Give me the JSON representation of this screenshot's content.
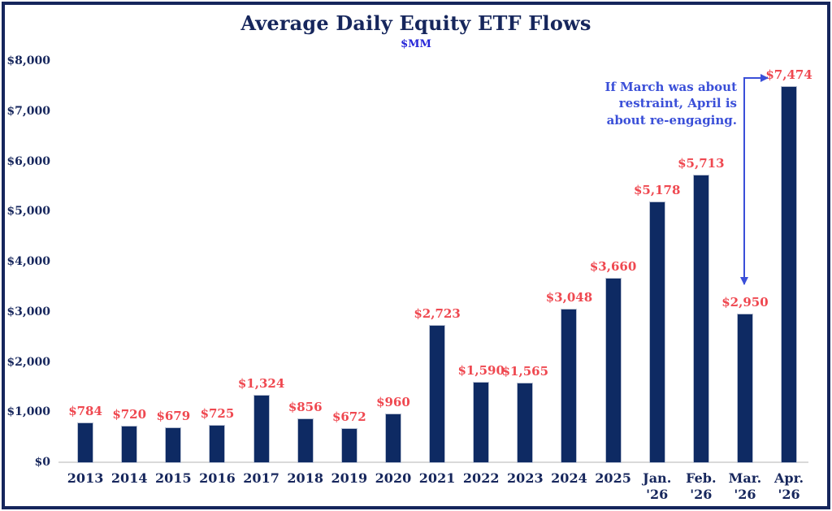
{
  "header": {
    "title": "Average Daily Equity ETF Flows",
    "subtitle": "$MM"
  },
  "colors": {
    "frame_border": "#16265C",
    "bar": "#0E2A63",
    "axis_text": "#16265C",
    "value_label": "#EF4850",
    "annotation_blue": "#3A4FD8",
    "subtitle_blue": "#2626D8",
    "axis_line": "#D9D9D9"
  },
  "y_axis": {
    "ticks": [
      "$8,000",
      "$7,000",
      "$6,000",
      "$5,000",
      "$4,000",
      "$3,000",
      "$2,000",
      "$1,000",
      "$0"
    ],
    "max": 8000,
    "min": 0,
    "step": 1000
  },
  "annotation": {
    "lines": [
      "If March was about",
      "restraint, April is",
      "about re-engaging."
    ]
  },
  "chart_data": {
    "type": "bar",
    "title": "Average Daily Equity ETF Flows",
    "subtitle_units": "$MM",
    "categories": [
      "2013",
      "2014",
      "2015",
      "2016",
      "2017",
      "2018",
      "2019",
      "2020",
      "2021",
      "2022",
      "2023",
      "2024",
      "2025",
      "Jan. '26",
      "Feb. '26",
      "Mar. '26",
      "Apr. '26"
    ],
    "values": [
      784,
      720,
      679,
      725,
      1324,
      856,
      672,
      960,
      2723,
      1590,
      1565,
      3048,
      3660,
      5178,
      5713,
      2950,
      7474
    ],
    "value_labels": [
      "$784",
      "$720",
      "$679",
      "$725",
      "$1,324",
      "$856",
      "$672",
      "$960",
      "$2,723",
      "$1,590",
      "$1,565",
      "$3,048",
      "$3,660",
      "$5,178",
      "$5,713",
      "$2,950",
      "$7,474"
    ],
    "ylim": [
      0,
      8000
    ],
    "grid": false,
    "legend": false,
    "bar_color": "#0E2A63",
    "annotation_text": "If March was about restraint, April is about re-engaging.",
    "annotation_points_to": [
      "Apr. '26 value label",
      "Mar. '26 bar"
    ]
  }
}
